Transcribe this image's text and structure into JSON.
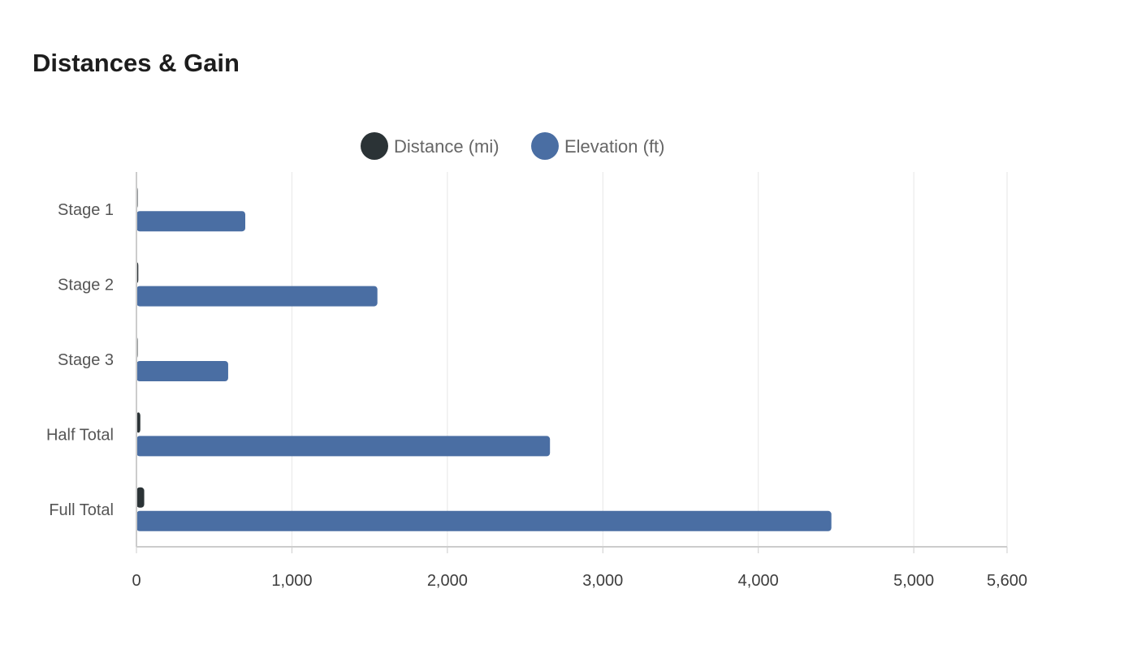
{
  "title": "Distances & Gain",
  "chart_data": {
    "type": "bar",
    "orientation": "horizontal",
    "title": "Distances & Gain",
    "categories": [
      "Stage 1",
      "Stage 2",
      "Stage 3",
      "Half Total",
      "Full Total"
    ],
    "series": [
      {
        "name": "Distance (mi)",
        "color": "#2b3336",
        "values": [
          8,
          12,
          5,
          25,
          50
        ]
      },
      {
        "name": "Elevation (ft)",
        "color": "#4a6ea3",
        "values": [
          700,
          1550,
          590,
          2660,
          4470
        ]
      }
    ],
    "x_ticks": [
      0,
      1000,
      2000,
      3000,
      4000,
      5000,
      5600
    ],
    "x_tick_labels": [
      "0",
      "1,000",
      "2,000",
      "3,000",
      "4,000",
      "5,000",
      "5,600"
    ],
    "xlim": [
      0,
      5600
    ],
    "xlabel": "",
    "ylabel": "",
    "legend_position": "top-center",
    "grid": true
  }
}
